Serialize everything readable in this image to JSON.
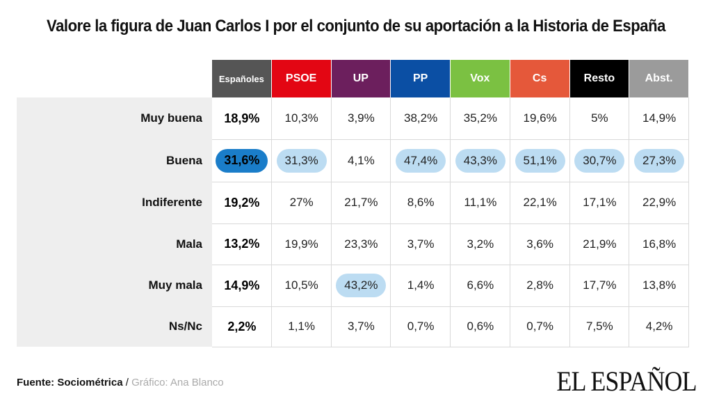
{
  "title": "Valore la figura de Juan Carlos I por el conjunto de su aportación a la Historia de España",
  "chart_data": {
    "type": "table",
    "columns": [
      {
        "label": "Españoles",
        "color": "#555555"
      },
      {
        "label": "PSOE",
        "color": "#e30613"
      },
      {
        "label": "UP",
        "color": "#6c1f5d"
      },
      {
        "label": "PP",
        "color": "#0b4fa4"
      },
      {
        "label": "Vox",
        "color": "#7bc142"
      },
      {
        "label": "Cs",
        "color": "#e5583a"
      },
      {
        "label": "Resto",
        "color": "#000000"
      },
      {
        "label": "Abst.",
        "color": "#9b9b9b"
      }
    ],
    "rows": [
      {
        "label": "Muy buena",
        "values": [
          "18,9%",
          "10,3%",
          "3,9%",
          "38,2%",
          "35,2%",
          "19,6%",
          "5%",
          "14,9%"
        ]
      },
      {
        "label": "Buena",
        "values": [
          "31,6%",
          "31,3%",
          "4,1%",
          "47,4%",
          "43,3%",
          "51,1%",
          "30,7%",
          "27,3%"
        ]
      },
      {
        "label": "Indiferente",
        "values": [
          "19,2%",
          "27%",
          "21,7%",
          "8,6%",
          "11,1%",
          "22,1%",
          "17,1%",
          "22,9%"
        ]
      },
      {
        "label": "Mala",
        "values": [
          "13,2%",
          "19,9%",
          "23,3%",
          "3,7%",
          "3,2%",
          "3,6%",
          "21,9%",
          "16,8%"
        ]
      },
      {
        "label": "Muy mala",
        "values": [
          "14,9%",
          "10,5%",
          "43,2%",
          "1,4%",
          "6,6%",
          "2,8%",
          "17,7%",
          "13,8%"
        ]
      },
      {
        "label": "Ns/Nc",
        "values": [
          "2,2%",
          "1,1%",
          "3,7%",
          "0,7%",
          "0,6%",
          "0,7%",
          "7,5%",
          "4,2%"
        ]
      }
    ],
    "highlighted": [
      {
        "row": "Buena",
        "column": "Españoles",
        "style": "dark"
      },
      {
        "row": "Buena",
        "column": "PSOE",
        "style": "light"
      },
      {
        "row": "Buena",
        "column": "PP",
        "style": "light"
      },
      {
        "row": "Buena",
        "column": "Vox",
        "style": "light"
      },
      {
        "row": "Buena",
        "column": "Cs",
        "style": "light"
      },
      {
        "row": "Buena",
        "column": "Resto",
        "style": "light"
      },
      {
        "row": "Buena",
        "column": "Abst.",
        "style": "light"
      },
      {
        "row": "Muy mala",
        "column": "UP",
        "style": "light"
      }
    ],
    "highlight_colors": {
      "dark": "#1a7dc9",
      "light": "#bcdcf2"
    }
  },
  "footer": {
    "source": "Fuente: Sociométrica",
    "separator": " / ",
    "credit": "Gráfico: Ana Blanco"
  },
  "logo": "EL ESPAÑOL"
}
